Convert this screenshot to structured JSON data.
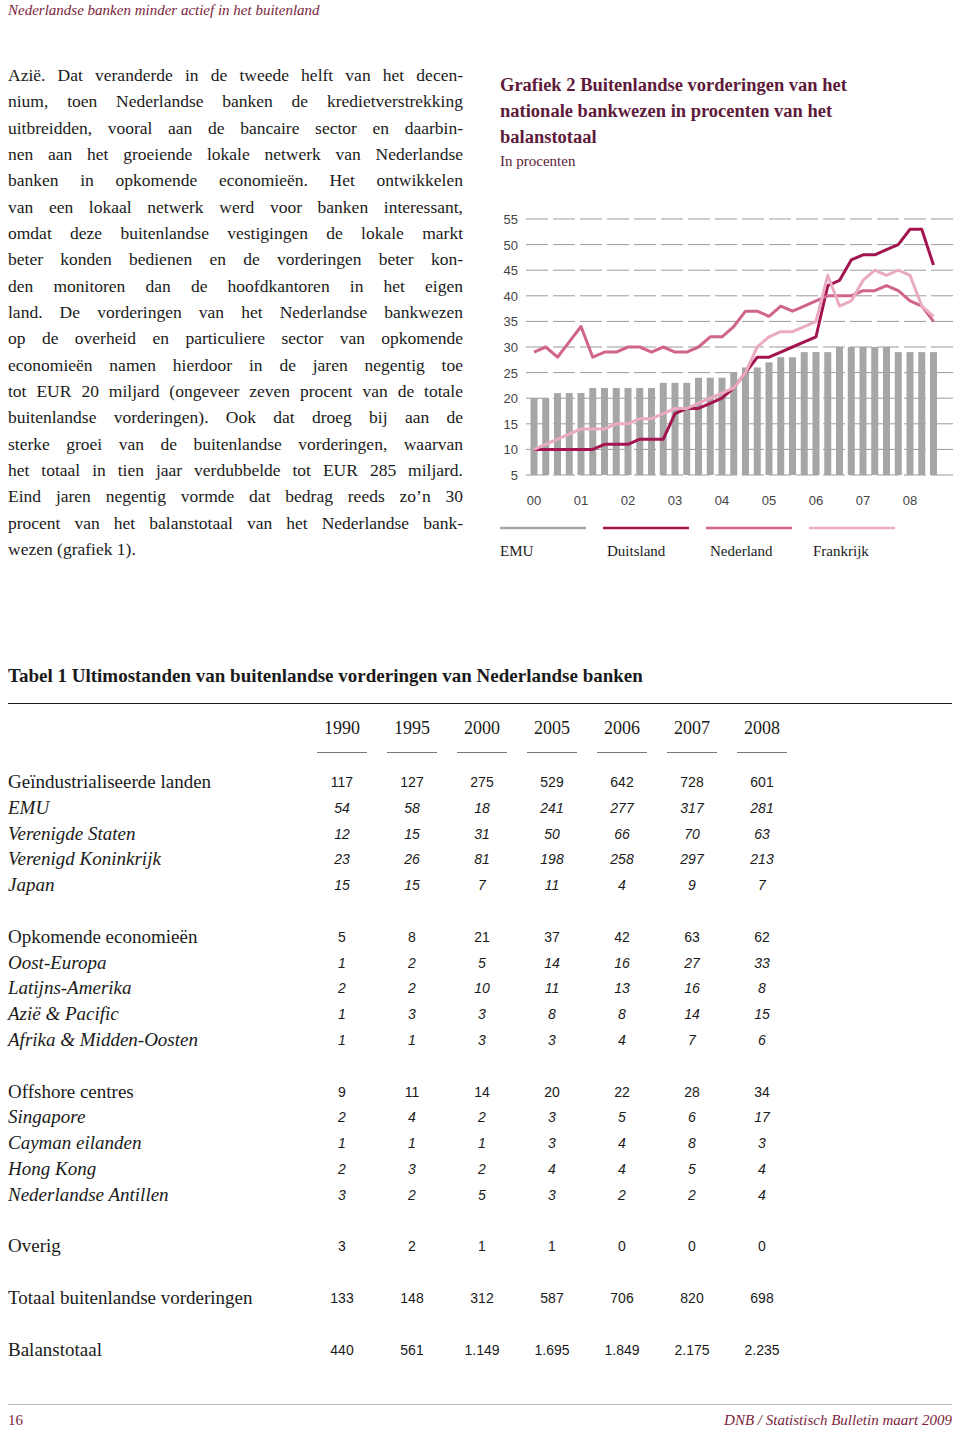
{
  "header": {
    "text": "Nederlandse banken minder actief in het buitenland"
  },
  "body": {
    "lines": [
      "Azië. Dat veranderde in de tweede helft van het decen-",
      "nium, toen Nederlandse banken de kredietverstrekking",
      "uitbreidden, vooral aan de bancaire sector en daarbin-",
      "nen aan het groeiende lokale netwerk van Nederlandse",
      "banken in opkomende economieën. Het ontwikkelen",
      "van een lokaal netwerk werd voor banken interessant,",
      "omdat deze buitenlandse vestigingen de lokale markt",
      "beter konden bedienen en de vorderingen beter kon-",
      "den monitoren dan de hoofdkantoren in het eigen",
      "land. De vorderingen van het Nederlandse bankwezen",
      "op de overheid en particuliere sector van opkomende",
      "economieën namen hierdoor in de jaren negentig toe",
      "tot EUR 20 miljard (ongeveer zeven procent van de totale",
      "buitenlandse vorderingen). Ook dat droeg bij aan de",
      "sterke groei van de buitenlandse vorderingen, waarvan",
      "het totaal in tien jaar verdubbelde tot EUR 285 miljard.",
      "Eind jaren negentig vormde dat bedrag reeds zo’n 30",
      "procent van het balanstotaal van het Nederlandse bank-",
      "wezen (grafiek 1)."
    ]
  },
  "chart_data": {
    "type": "bar",
    "title": "Grafiek 2 Buitenlandse vorderingen van het nationale bankwezen in procenten van het balanstotaal",
    "subtitle": "In procenten",
    "categories": [
      "00",
      null,
      null,
      null,
      "01",
      null,
      null,
      null,
      "02",
      null,
      null,
      null,
      "03",
      null,
      null,
      null,
      "04",
      null,
      null,
      null,
      "05",
      null,
      null,
      null,
      "06",
      null,
      null,
      null,
      "07",
      null,
      null,
      null,
      "08",
      null,
      null
    ],
    "series": [
      {
        "name": "EMU",
        "type": "bar",
        "color": "#a6a6a6",
        "values": [
          20,
          20,
          21,
          21,
          21,
          22,
          22,
          22,
          22,
          22,
          22,
          23,
          23,
          23,
          24,
          24,
          24,
          25,
          26,
          26,
          27,
          28,
          28,
          29,
          29,
          29,
          30,
          30,
          30,
          30,
          30,
          29,
          29,
          29,
          29
        ]
      },
      {
        "name": "Duitsland",
        "type": "line",
        "color": "#a3154f",
        "values": [
          10,
          10,
          10,
          10,
          10,
          10,
          11,
          11,
          11,
          12,
          12,
          12,
          17,
          18,
          18,
          19,
          20,
          22,
          25,
          28,
          28,
          29,
          30,
          31,
          32,
          42,
          43,
          47,
          48,
          48,
          49,
          50,
          53,
          53,
          46
        ]
      },
      {
        "name": "Nederland",
        "type": "line",
        "color": "#d0648c",
        "values": [
          29,
          30,
          28,
          31,
          34,
          28,
          29,
          29,
          30,
          30,
          29,
          30,
          29,
          29,
          30,
          32,
          32,
          34,
          37,
          37,
          36,
          38,
          37,
          38,
          39,
          40,
          40,
          40,
          41,
          41,
          42,
          41,
          39,
          38,
          35
        ]
      },
      {
        "name": "Frankrijk",
        "type": "line",
        "color": "#eaaac2",
        "values": [
          10,
          11,
          12,
          13,
          14,
          14,
          14,
          15,
          15,
          16,
          16,
          17,
          18,
          18,
          19,
          20,
          21,
          22,
          25,
          30,
          32,
          33,
          33,
          34,
          35,
          44,
          38,
          39,
          43,
          45,
          44,
          45,
          44,
          38,
          36
        ]
      }
    ],
    "ylim": [
      5,
      55
    ],
    "yticks": [
      5,
      10,
      15,
      20,
      25,
      30,
      35,
      40,
      45,
      50,
      55
    ],
    "grid": true,
    "legend": "bottom"
  },
  "table": {
    "title": "Tabel 1 Ultimostanden van buitenlandse vorderingen van Nederlandse banken",
    "columns": [
      "1990",
      "1995",
      "2000",
      "2005",
      "2006",
      "2007",
      "2008"
    ],
    "groups": [
      {
        "label": "Geïndustrialiseerde landen",
        "values": [
          117,
          127,
          275,
          529,
          642,
          728,
          601
        ],
        "rows": [
          {
            "label": "EMU",
            "values": [
              54,
              58,
              18,
              241,
              277,
              317,
              281
            ]
          },
          {
            "label": "Verenigde Staten",
            "values": [
              12,
              15,
              31,
              50,
              66,
              70,
              63
            ]
          },
          {
            "label": "Verenigd Koninkrijk",
            "values": [
              23,
              26,
              81,
              198,
              258,
              297,
              213
            ]
          },
          {
            "label": "Japan",
            "values": [
              15,
              15,
              7,
              11,
              4,
              9,
              7
            ]
          }
        ]
      },
      {
        "label": "Opkomende economieën",
        "values": [
          5,
          8,
          21,
          37,
          42,
          63,
          62
        ],
        "rows": [
          {
            "label": "Oost-Europa",
            "values": [
              1,
              2,
              5,
              14,
              16,
              27,
              33
            ]
          },
          {
            "label": "Latijns-Amerika",
            "values": [
              2,
              2,
              10,
              11,
              13,
              16,
              8
            ]
          },
          {
            "label": "Azië & Pacific",
            "values": [
              1,
              3,
              3,
              8,
              8,
              14,
              15
            ]
          },
          {
            "label": "Afrika & Midden-Oosten",
            "values": [
              1,
              1,
              3,
              3,
              4,
              7,
              6
            ]
          }
        ]
      },
      {
        "label": "Offshore centres",
        "values": [
          9,
          11,
          14,
          20,
          22,
          28,
          34
        ],
        "rows": [
          {
            "label": "Singapore",
            "values": [
              2,
              4,
              2,
              3,
              5,
              6,
              17
            ]
          },
          {
            "label": "Cayman eilanden",
            "values": [
              1,
              1,
              1,
              3,
              4,
              8,
              3
            ]
          },
          {
            "label": "Hong Kong",
            "values": [
              2,
              3,
              2,
              4,
              4,
              5,
              4
            ]
          },
          {
            "label": "Nederlandse Antillen",
            "values": [
              3,
              2,
              5,
              3,
              2,
              2,
              4
            ]
          }
        ]
      },
      {
        "label": "Overig",
        "values": [
          3,
          2,
          1,
          1,
          0,
          0,
          0
        ],
        "rows": []
      },
      {
        "label": "Totaal buitenlandse vorderingen",
        "values": [
          133,
          148,
          312,
          587,
          706,
          820,
          698
        ],
        "rows": []
      },
      {
        "label": "Balanstotaal",
        "values": [
          "440",
          "561",
          "1.149",
          "1.695",
          "1.849",
          "2.175",
          "2.235"
        ],
        "rows": []
      }
    ]
  },
  "footer": {
    "page": "16",
    "publication": "DNB / Statistisch Bulletin maart 2009"
  }
}
